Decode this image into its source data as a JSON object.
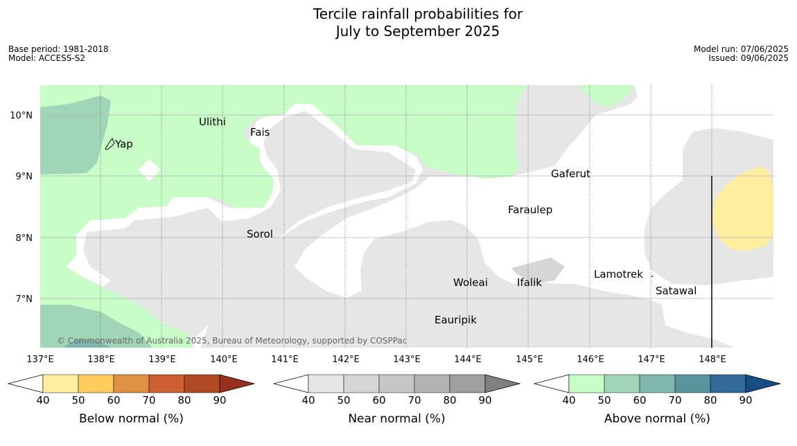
{
  "title_line1": "Tercile rainfall probabilities for",
  "title_line2": "July to September 2025",
  "base_period": "Base period: 1981-2018",
  "model": "Model: ACCESS-S2",
  "model_run": "Model run: 07/06/2025",
  "issued": "Issued: 09/06/2025",
  "copyright": "© Commonwealth of Australia 2025, Bureau of Meteorology, supported by COSPPac",
  "latitudes": [
    "10°N",
    "9°N",
    "8°N",
    "7°N"
  ],
  "longitudes": [
    "137°E",
    "138°E",
    "139°E",
    "140°E",
    "141°E",
    "142°E",
    "143°E",
    "144°E",
    "145°E",
    "146°E",
    "147°E",
    "148°E"
  ],
  "places": [
    {
      "name": "Yap"
    },
    {
      "name": "Ulithi"
    },
    {
      "name": "Fais"
    },
    {
      "name": "Gaferut"
    },
    {
      "name": "Faraulep"
    },
    {
      "name": "Sorol"
    },
    {
      "name": "Lamotrek"
    },
    {
      "name": "Woleai"
    },
    {
      "name": "Ifalik"
    },
    {
      "name": "Satawal"
    },
    {
      "name": "Eauripik"
    }
  ],
  "legends": [
    {
      "title": "Below normal (%)",
      "ticks": [
        "40",
        "50",
        "60",
        "70",
        "80",
        "90"
      ],
      "colors": [
        "#ffeda0",
        "#fecc5c",
        "#e09143",
        "#cd6032",
        "#b04a25",
        "#96301f"
      ]
    },
    {
      "title": "Near normal (%)",
      "ticks": [
        "40",
        "50",
        "60",
        "70",
        "80",
        "90"
      ],
      "colors": [
        "#e6e6e6",
        "#d6d6d6",
        "#c6c6c6",
        "#b3b3b3",
        "#a0a0a0",
        "#808080"
      ]
    },
    {
      "title": "Above normal (%)",
      "ticks": [
        "40",
        "50",
        "60",
        "70",
        "80",
        "90"
      ],
      "colors": [
        "#c8fdc8",
        "#a1d5b7",
        "#80b8ad",
        "#5a949c",
        "#326b9a",
        "#174d85"
      ]
    }
  ]
}
